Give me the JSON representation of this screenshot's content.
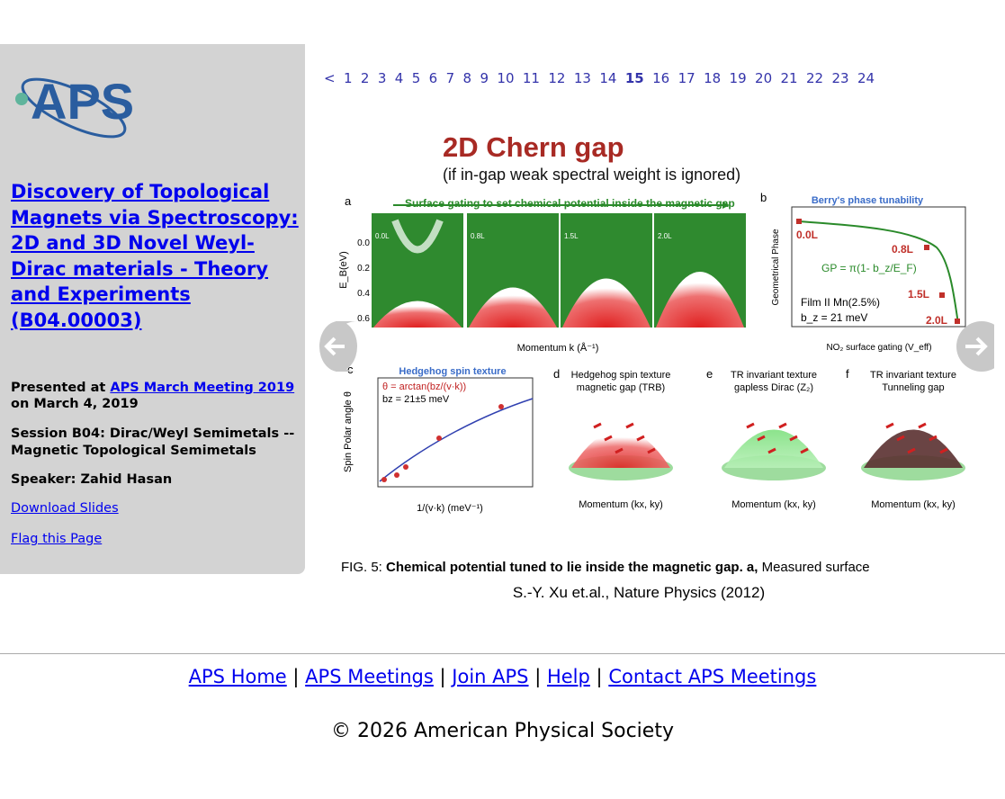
{
  "sidebar": {
    "logo": "APS",
    "title": "Discovery of Topological Magnets via Spectroscopy: 2D and 3D Novel Weyl-Dirac materials - Theory and Experiments (B04.00003)",
    "presented": "Presented at",
    "meeting": "APS March Meeting 2019",
    "date": "on March 4, 2019",
    "session": "Session B04: Dirac/Weyl Semimetals -- Magnetic Topological Semimetals",
    "speaker": "Speaker: Zahid Hasan",
    "download": "Download Slides",
    "flag": "Flag this Page"
  },
  "pager": {
    "prev": "<",
    "pages": [
      "1",
      "2",
      "3",
      "4",
      "5",
      "6",
      "7",
      "8",
      "9",
      "10",
      "11",
      "12",
      "13",
      "14",
      "15",
      "16",
      "17",
      "18",
      "19",
      "20",
      "21",
      "22",
      "23",
      "24"
    ],
    "current": "15"
  },
  "slide": {
    "title": "2D Chern gap",
    "subtitle": "(if in-gap weak spectral weight is ignored)",
    "panel_a": {
      "label": "a",
      "banner": "Surface gating to set chemical potential inside the magnetic gap",
      "ylabel": "E_B(eV)",
      "yticks": [
        "0.0",
        "0.2",
        "0.4",
        "0.6"
      ],
      "doses": [
        "0.0L",
        "0.8L",
        "1.5L",
        "2.0L"
      ],
      "xlabel": "Momentum k (Å⁻¹)"
    },
    "panel_b": {
      "label": "b",
      "title": "Berry's phase tunability",
      "ylabel": "Geometrical Phase",
      "formula": "GP = π(1- b_z/E_F)",
      "film": "Film II  Mn(2.5%)",
      "bz": "b_z = 21 meV",
      "xlabel": "NO₂ surface gating (V_eff)",
      "points": [
        "0.0L",
        "0.8L",
        "1.5L",
        "2.0L"
      ]
    },
    "panel_c": {
      "label": "c",
      "title": "Hedgehog spin texture",
      "formula": "θ = arctan(bz/(v·k))",
      "bz": "bz = 21±5 meV",
      "ylabel": "Spin Polar angle θ",
      "xlabel": "1/(v·k)  (meV⁻¹)"
    },
    "panel_d": {
      "label": "d",
      "title": "Hedgehog spin texture",
      "subtitle": "magnetic gap (TRB)"
    },
    "panel_e": {
      "label": "e",
      "title": "TR invariant texture",
      "subtitle": "gapless Dirac (Z₂)"
    },
    "panel_f": {
      "label": "f",
      "title": "TR invariant texture",
      "subtitle": "Tunneling gap"
    },
    "momentum": "Momentum (kx, ky)",
    "caption": {
      "fig": "FIG. 5:",
      "bold": "Chemical potential tuned to lie inside the magnetic gap.  a,",
      "rest": "Measured surface"
    },
    "citation": "S.-Y. Xu et.al., Nature Physics (2012)"
  },
  "footer": {
    "links": [
      "APS Home",
      "APS Meetings",
      "Join APS",
      "Help",
      "Contact APS Meetings"
    ],
    "separator": "|",
    "copyright": "© 2026 American Physical Society"
  }
}
